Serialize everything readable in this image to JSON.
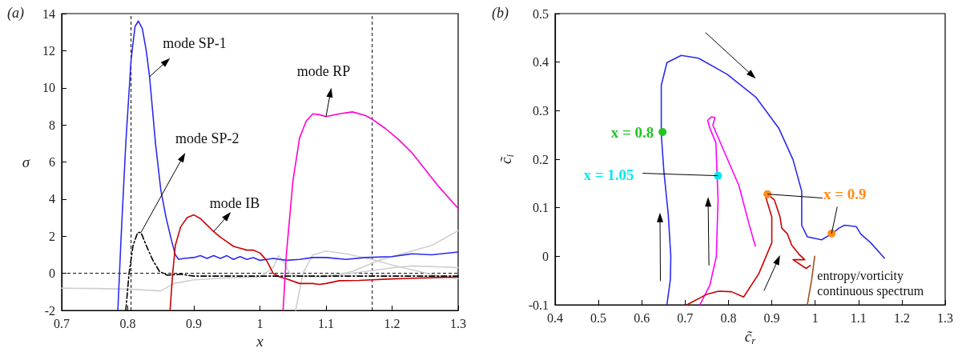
{
  "chart_data": [
    {
      "type": "line",
      "title": "(a)",
      "xlabel": "x",
      "ylabel": "σ",
      "xlim": [
        0.7,
        1.3
      ],
      "ylim": [
        -2,
        14
      ],
      "xticks": [
        0.7,
        0.8,
        0.9,
        1,
        1.1,
        1.2,
        1.3
      ],
      "yticks": [
        -2,
        0,
        2,
        4,
        6,
        8,
        10,
        12,
        14
      ],
      "grid": false,
      "legend": false,
      "marker": "none",
      "line_style": "solid",
      "ref_lines": [
        {
          "axis": "x",
          "value": 0.805,
          "color": "#000000",
          "line_style": "dashed"
        },
        {
          "axis": "x",
          "value": 1.17,
          "color": "#000000",
          "line_style": "dashed"
        },
        {
          "axis": "y",
          "value": 0,
          "color": "#000000",
          "line_style": "dashed"
        }
      ],
      "series": [
        {
          "color": "#cfcfcf",
          "x": [
            0.7,
            0.75,
            0.8,
            0.85,
            0.87,
            0.9,
            0.95,
            1.0,
            1.02,
            1.028,
            1.036,
            1.045,
            1.06,
            1.1,
            1.14,
            1.18,
            1.22,
            1.26,
            1.3
          ],
          "values": [
            -0.8,
            -0.82,
            -0.85,
            -0.95,
            -0.55,
            -0.35,
            -0.25,
            -0.2,
            0.3,
            0.95,
            0.6,
            0.0,
            -0.15,
            -0.2,
            0.1,
            0.7,
            1.1,
            1.5,
            2.3
          ]
        },
        {
          "color": "#cfcfcf",
          "x": [
            1.054,
            1.065,
            1.08,
            1.1,
            1.13,
            1.17,
            1.2,
            1.24,
            1.27,
            1.3
          ],
          "values": [
            -2,
            0,
            1.0,
            1.2,
            1.05,
            0.75,
            0.45,
            0.1,
            -0.15,
            -0.3
          ]
        },
        {
          "color": "#cfcfcf",
          "x": [
            1.1,
            1.15,
            1.2,
            1.23,
            1.27,
            1.3
          ],
          "values": [
            -0.15,
            0.05,
            0.3,
            0.4,
            0.35,
            0.3
          ]
        },
        {
          "name": "mode SP-1",
          "color": "#2b2bf0",
          "x": [
            0.785,
            0.79,
            0.797,
            0.805,
            0.811,
            0.816,
            0.822,
            0.828,
            0.833,
            0.842,
            0.85,
            0.858,
            0.866,
            0.872,
            0.877,
            0.885,
            0.9,
            0.91,
            0.92,
            0.93,
            0.94,
            0.95,
            0.96,
            0.97,
            0.98,
            0.99,
            1.0,
            1.01,
            1.02,
            1.04,
            1.06,
            1.08,
            1.1,
            1.13,
            1.16,
            1.2,
            1.23,
            1.26,
            1.3
          ],
          "values": [
            -2,
            2,
            7,
            11.5,
            13.3,
            13.6,
            13.2,
            12,
            10.6,
            7,
            4.5,
            3,
            1.8,
            1.0,
            0.75,
            0.8,
            0.85,
            0.95,
            0.8,
            0.95,
            0.8,
            0.95,
            0.75,
            0.9,
            0.75,
            0.85,
            0.7,
            0.75,
            0.8,
            0.7,
            0.75,
            0.85,
            0.85,
            0.75,
            0.85,
            0.9,
            1.05,
            1.0,
            1.15
          ]
        },
        {
          "name": "mode IB",
          "color": "#cc0000",
          "x": [
            0.864,
            0.868,
            0.872,
            0.88,
            0.89,
            0.9,
            0.91,
            0.92,
            0.93,
            0.94,
            0.95,
            0.96,
            0.97,
            0.98,
            0.99,
            1.0,
            1.01,
            1.02,
            1.03,
            1.04,
            1.06,
            1.08,
            1.09,
            1.1,
            1.12,
            1.15,
            1.2,
            1.25,
            1.3
          ],
          "values": [
            -2,
            0,
            1.5,
            2.5,
            3.0,
            3.15,
            2.95,
            2.6,
            2.25,
            1.95,
            1.7,
            1.45,
            1.35,
            1.25,
            1.25,
            1.1,
            0.7,
            0.0,
            -0.2,
            -0.3,
            -0.55,
            -0.55,
            -0.6,
            -0.55,
            -0.4,
            -0.38,
            -0.3,
            -0.25,
            -0.2
          ]
        },
        {
          "name": "mode RP",
          "color": "#ff00cc",
          "x": [
            1.035,
            1.04,
            1.05,
            1.06,
            1.07,
            1.08,
            1.09,
            1.1,
            1.12,
            1.14,
            1.16,
            1.17,
            1.19,
            1.21,
            1.23,
            1.25,
            1.27,
            1.29,
            1.3
          ],
          "values": [
            -2,
            1,
            5,
            7.3,
            8.2,
            8.6,
            8.55,
            8.45,
            8.6,
            8.7,
            8.5,
            8.3,
            7.8,
            7.2,
            6.5,
            5.6,
            4.7,
            3.9,
            3.5
          ]
        },
        {
          "name": "mode SP-2",
          "color": "#000000",
          "line_style": "dashed",
          "x": [
            0.797,
            0.802,
            0.808,
            0.815,
            0.82,
            0.828,
            0.838,
            0.848,
            0.86,
            0.88,
            0.9,
            1.0,
            1.1,
            1.2,
            1.3
          ],
          "values": [
            -2,
            0,
            1.5,
            2.2,
            2.2,
            1.5,
            0.7,
            0.1,
            -0.1,
            -0.05,
            -0.15,
            -0.15,
            -0.15,
            -0.15,
            -0.15
          ]
        }
      ]
    },
    {
      "type": "line",
      "title": "(b)",
      "xlabel": "c̃$_{r}$",
      "ylabel": "c̃$_{i}$",
      "xlim": [
        0.4,
        1.3
      ],
      "ylim": [
        -0.1,
        0.5
      ],
      "xticks": [
        0.4,
        0.5,
        0.6,
        0.7,
        0.8,
        0.9,
        1,
        1.1,
        1.2,
        1.3
      ],
      "yticks": [
        -0.1,
        0,
        0.1,
        0.2,
        0.3,
        0.4,
        0.5
      ],
      "grid": false,
      "legend": false,
      "marker": "none",
      "line_style": "solid",
      "series": [
        {
          "color": "#2b2bf0",
          "x": [
            0.658,
            0.666,
            0.667,
            0.661,
            0.651,
            0.645,
            0.645,
            0.658,
            0.691,
            0.731,
            0.797,
            0.863,
            0.916,
            0.949,
            0.969,
            0.969,
            0.982,
            1.015,
            1.038,
            1.055,
            1.068,
            1.095,
            1.105,
            1.128,
            1.16
          ],
          "values": [
            -0.1,
            -0.048,
            0,
            0.087,
            0.175,
            0.252,
            0.352,
            0.399,
            0.414,
            0.408,
            0.375,
            0.328,
            0.264,
            0.199,
            0.134,
            0.064,
            0.04,
            0.034,
            0.046,
            0.058,
            0.064,
            0.061,
            0.046,
            0.028,
            -0.004
          ]
        },
        {
          "color": "#ff00ff",
          "x": [
            0.734,
            0.757,
            0.772,
            0.776,
            0.771,
            0.757,
            0.752,
            0.76,
            0.769,
            0.764,
            0.79,
            0.824,
            0.85,
            0.862
          ],
          "values": [
            -0.1,
            -0.06,
            -0.001,
            0.116,
            0.234,
            0.264,
            0.28,
            0.287,
            0.286,
            0.27,
            0.216,
            0.146,
            0.058,
            0.021
          ]
        },
        {
          "color": "#cc0000",
          "x": [
            0.704,
            0.751,
            0.777,
            0.807,
            0.835,
            0.87,
            0.9,
            0.9,
            0.886,
            0.89,
            0.906,
            0.919,
            0.923,
            0.936,
            0.946,
            0.962,
            0.976,
            0.949,
            0.979,
            0.989
          ],
          "values": [
            -0.1,
            -0.078,
            -0.072,
            -0.073,
            -0.084,
            -0.036,
            0.028,
            0.081,
            0.122,
            0.128,
            0.116,
            0.081,
            0.058,
            0.046,
            0.023,
            0.005,
            -0.007,
            -0.007,
            -0.025,
            -0.019
          ]
        },
        {
          "name": "entropy/vorticity continuous spectrum",
          "color": "#a0521e",
          "x": [
            0.999,
            0.992,
            0.982
          ],
          "values": [
            0,
            -0.048,
            -0.1
          ]
        },
        {
          "name": "x = 0.8",
          "type": "scatter",
          "marker": "circle",
          "color": "#22c422",
          "x": [
            0.648
          ],
          "values": [
            0.256
          ]
        },
        {
          "name": "x = 1.05",
          "type": "scatter",
          "marker": "circle",
          "color": "#00e8f0",
          "x": [
            0.776
          ],
          "values": [
            0.166
          ]
        },
        {
          "name": "x = 0.9",
          "type": "scatter",
          "marker": "circle",
          "color": "#ff8c1a",
          "x": [
            0.89,
            1.038
          ],
          "values": [
            0.128,
            0.047
          ]
        }
      ]
    }
  ]
}
